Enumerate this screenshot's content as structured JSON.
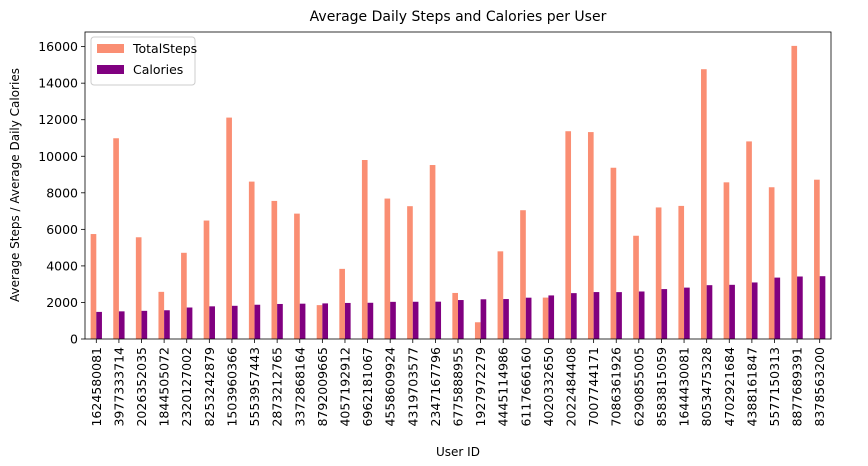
{
  "chart_data": {
    "type": "bar",
    "title": "Average Daily Steps and Calories per User",
    "xlabel": "User ID",
    "ylabel": "Average Steps / Average Daily Calories",
    "ylim": [
      0,
      16800
    ],
    "yticks": [
      0,
      2000,
      4000,
      6000,
      8000,
      10000,
      12000,
      14000,
      16000
    ],
    "grid": false,
    "legend_position": "top-left",
    "categories": [
      "1624580081",
      "3977333714",
      "2026352035",
      "1844505072",
      "2320127002",
      "8253242879",
      "1503960366",
      "5553957443",
      "2873212765",
      "3372868164",
      "8792009665",
      "4057192912",
      "6962181067",
      "4558609924",
      "4319703577",
      "2347167796",
      "6775888955",
      "1927972279",
      "4445114986",
      "6117666160",
      "4020332650",
      "2022484408",
      "7007744171",
      "7086361926",
      "6290855005",
      "8583815059",
      "1644430081",
      "8053475328",
      "4702921684",
      "4388161847",
      "5577150313",
      "8877689391",
      "8378563200"
    ],
    "series": [
      {
        "name": "TotalSteps",
        "color": "#fa8e73",
        "values": [
          5744,
          10985,
          5567,
          2580,
          4717,
          6482,
          12116,
          8613,
          7556,
          6861,
          1854,
          3838,
          9795,
          7685,
          7268,
          9520,
          2520,
          916,
          4797,
          7047,
          2266,
          11370,
          11323,
          9372,
          5650,
          7199,
          7283,
          14763,
          8573,
          10813,
          8304,
          16040,
          8718
        ]
      },
      {
        "name": "Calories",
        "color": "#800080",
        "values": [
          1483,
          1513,
          1541,
          1573,
          1724,
          1788,
          1816,
          1875,
          1917,
          1933,
          1948,
          1973,
          1982,
          2033,
          2038,
          2043,
          2132,
          2173,
          2186,
          2261,
          2385,
          2510,
          2568,
          2566,
          2600,
          2732,
          2812,
          2946,
          2965,
          3094,
          3360,
          3420,
          3437
        ]
      }
    ]
  }
}
